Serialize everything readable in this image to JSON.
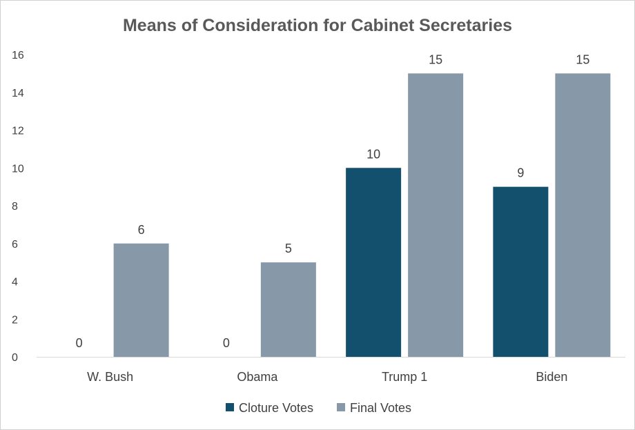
{
  "chart_data": {
    "type": "bar",
    "title": "Means of Consideration for Cabinet Secretaries",
    "xlabel": "",
    "ylabel": "",
    "categories": [
      "W. Bush",
      "Obama",
      "Trump 1",
      "Biden"
    ],
    "series": [
      {
        "name": "Cloture Votes",
        "values": [
          0,
          0,
          10,
          9
        ],
        "color": "#13506e"
      },
      {
        "name": "Final Votes",
        "values": [
          6,
          5,
          15,
          15
        ],
        "color": "#8799a9"
      }
    ],
    "ylim": [
      0,
      16
    ],
    "yticks": [
      "0",
      "2",
      "4",
      "6",
      "8",
      "10",
      "12",
      "14",
      "16"
    ],
    "grid": false,
    "legend_position": "bottom",
    "data_labels": true
  }
}
